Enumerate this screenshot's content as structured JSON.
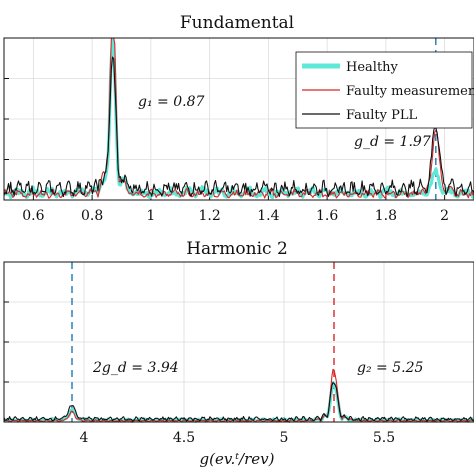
{
  "chart_data": [
    {
      "type": "line",
      "title": "Fundamental",
      "xlim": [
        0.5,
        2.1
      ],
      "ylim": [
        0,
        1
      ],
      "xticks": [
        "0.6",
        "0.8",
        "1",
        "1.2",
        "1.4",
        "1.6",
        "1.8",
        "2"
      ],
      "grid": true,
      "legend_position": "top-right",
      "legend": [
        "Healthy",
        "Faulty measurement",
        "Faulty PLL"
      ],
      "annotations": [
        {
          "text": "g1 = 0.87",
          "x": 0.87
        },
        {
          "text": "gd = 1.97",
          "x": 1.97
        }
      ],
      "series": [
        {
          "name": "Healthy",
          "color": "#5ee8d8",
          "peaks": [
            [
              0.87,
              0.78
            ],
            [
              1.97,
              0.12
            ]
          ],
          "baseline": 0.06
        },
        {
          "name": "Faulty measurement",
          "color": "#d62728",
          "peaks": [
            [
              0.87,
              0.98
            ],
            [
              1.97,
              0.38
            ]
          ],
          "baseline": 0.05
        },
        {
          "name": "Faulty PLL",
          "color": "#111111",
          "peaks": [
            [
              0.87,
              0.72
            ],
            [
              1.97,
              0.4
            ]
          ],
          "baseline": 0.09
        }
      ],
      "dashed_markers": [
        {
          "x": 1.97,
          "color": "#1f77b4"
        }
      ]
    },
    {
      "type": "line",
      "title": "Harmonic 2",
      "xlim": [
        3.6,
        5.95
      ],
      "ylim": [
        0,
        1
      ],
      "xticks": [
        "4",
        "4.5",
        "5",
        "5.5"
      ],
      "xlabel": "g(ev.t/rev)",
      "grid": true,
      "annotations": [
        {
          "text": "2gd = 3.94",
          "x": 3.94
        },
        {
          "text": "g2 = 5.25",
          "x": 5.25
        }
      ],
      "series": [
        {
          "name": "Healthy",
          "color": "#5ee8d8",
          "peaks": [
            [
              3.94,
              0.06
            ],
            [
              5.25,
              0.22
            ]
          ],
          "baseline": 0.015
        },
        {
          "name": "Faulty measurement",
          "color": "#d62728",
          "peaks": [
            [
              3.94,
              0.05
            ],
            [
              5.25,
              0.3
            ]
          ],
          "baseline": 0.01
        },
        {
          "name": "Faulty PLL",
          "color": "#111111",
          "peaks": [
            [
              3.94,
              0.08
            ],
            [
              5.25,
              0.22
            ]
          ],
          "baseline": 0.025
        }
      ],
      "dashed_markers": [
        {
          "x": 3.94,
          "color": "#1f77b4"
        },
        {
          "x": 5.25,
          "color": "#d62728"
        }
      ]
    }
  ],
  "labels": {
    "top_title": "Fundamental",
    "bottom_title": "Harmonic 2",
    "legend_healthy": "Healthy",
    "legend_measurement": "Faulty measurement",
    "legend_pll": "Faulty PLL",
    "annot_g1": "g₁ = 0.87",
    "annot_gd": "g_d = 1.97",
    "annot_2gd": "2g_d = 3.94",
    "annot_g2": "g₂ = 5.25",
    "xlabel": "g(ev.ᵗ/rev)"
  }
}
